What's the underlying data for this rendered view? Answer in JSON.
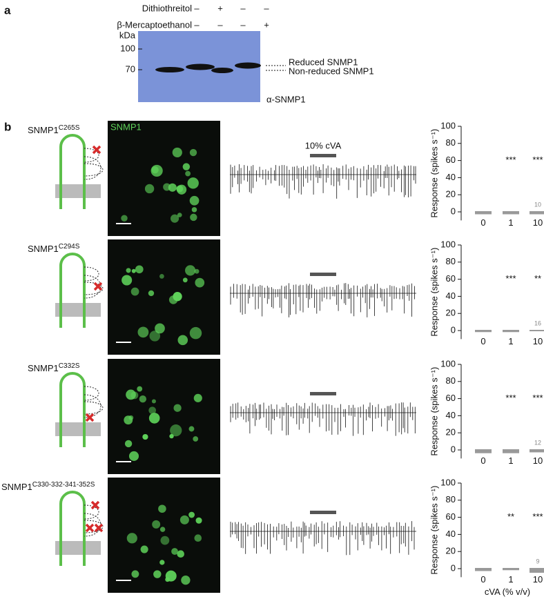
{
  "panel_a": {
    "letter": "a",
    "reagents": [
      {
        "name": "Dithiothreitol",
        "lanes": [
          "–",
          "+",
          "–",
          "–"
        ]
      },
      {
        "name": "β-Mercaptoethanol",
        "lanes": [
          "–",
          "–",
          "–",
          "+"
        ]
      }
    ],
    "unit": "kDa",
    "markers": [
      100,
      70
    ],
    "band_labels": [
      "Reduced SNMP1",
      "Non-reduced SNMP1"
    ],
    "antibody": "α-SNMP1"
  },
  "panel_b": {
    "letter": "b",
    "image_label": "SNMP1",
    "stimulus_label": "10% cVA",
    "rows": [
      {
        "label": "SNMP1",
        "mutation": "C265S"
      },
      {
        "label": "SNMP1",
        "mutation": "C294S"
      },
      {
        "label": "SNMP1",
        "mutation": "C332S"
      },
      {
        "label": "SNMP1",
        "mutation": "C330-332-341-352S"
      }
    ]
  },
  "chart_data": [
    {
      "type": "bar",
      "y_label": "Response (spikes s⁻¹)",
      "categories": [
        "0",
        "1",
        "10"
      ],
      "values": [
        -2,
        -2,
        -2
      ],
      "color": "#999999",
      "annotations": [
        "***",
        "***"
      ],
      "n": 10,
      "ylim": [
        -10,
        100
      ],
      "yticks": [
        0,
        20,
        40,
        60,
        80,
        100
      ]
    },
    {
      "type": "bar",
      "y_label": "Response (spikes s⁻¹)",
      "categories": [
        "0",
        "1",
        "10"
      ],
      "values": [
        -1,
        -1,
        0
      ],
      "color": "#999999",
      "annotations": [
        "***",
        "**"
      ],
      "n": 16,
      "ylim": [
        -10,
        100
      ],
      "yticks": [
        0,
        20,
        40,
        60,
        80,
        100
      ]
    },
    {
      "type": "bar",
      "y_label": "Response (spikes s⁻¹)",
      "categories": [
        "0",
        "1",
        "10"
      ],
      "values": [
        -3,
        -3,
        -2
      ],
      "color": "#999999",
      "annotations": [
        "***",
        "***"
      ],
      "n": 12,
      "ylim": [
        -10,
        100
      ],
      "yticks": [
        0,
        20,
        40,
        60,
        80,
        100
      ]
    },
    {
      "type": "bar",
      "y_label": "Response (spikes s⁻¹)",
      "x_label": "cVA (% v/v)",
      "categories": [
        "0",
        "1",
        "10"
      ],
      "values": [
        -2,
        -1,
        -4
      ],
      "color": "#999999",
      "annotations": [
        "**",
        "***"
      ],
      "n": 9,
      "ylim": [
        -10,
        100
      ],
      "yticks": [
        0,
        20,
        40,
        60,
        80,
        100
      ]
    }
  ]
}
